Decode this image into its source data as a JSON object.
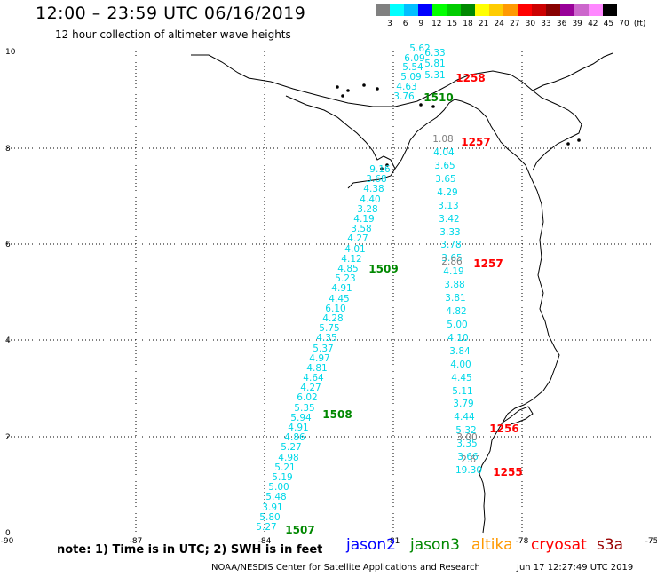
{
  "header": {
    "title": "12:00 – 23:59 UTC 06/16/2019",
    "subtitle": "12 hour collection of altimeter wave heights"
  },
  "scale": {
    "colors": [
      "#808080",
      "#00ffff",
      "#00bfff",
      "#0000ff",
      "#00ff00",
      "#00cc00",
      "#008800",
      "#ffff00",
      "#ffcc00",
      "#ff9900",
      "#ff0000",
      "#cc0000",
      "#880000",
      "#990099",
      "#cc66cc",
      "#ff88ff",
      "#000000"
    ],
    "labels": [
      "3",
      "6",
      "9",
      "12",
      "15",
      "18",
      "21",
      "24",
      "27",
      "30",
      "33",
      "36",
      "39",
      "42",
      "45",
      "70",
      "(ft)"
    ]
  },
  "map": {
    "lon_ticks": [
      "-90",
      "-87",
      "-84",
      "-81",
      "-78",
      "-75"
    ],
    "lat_ticks": [
      "0",
      "2",
      "4",
      "6",
      "8",
      "10"
    ],
    "tracks": [
      {
        "color": "#00d8e8",
        "readings": [
          "5.62",
          "6.33",
          "6.09",
          "5.81",
          "5.54",
          "5.09",
          "5.31",
          "4.63",
          "3.76"
        ]
      },
      {
        "color": "#00d8e8",
        "readings": [
          "9.16",
          "3.68",
          "4.38",
          "4.40",
          "3.28",
          "4.19",
          "3.58",
          "4.27",
          "4.01",
          "4.12",
          "4.85",
          "5.23",
          "4.91",
          "4.45",
          "6.10",
          "4.28",
          "5.75",
          "4.35",
          "5.37",
          "4.97",
          "4.81",
          "4.64",
          "4.27",
          "6.02",
          "5.35",
          "5.94",
          "4.91",
          "4.86",
          "5.27",
          "4.98",
          "5.21",
          "5.19",
          "5.00",
          "5.48",
          "3.91",
          "5.80",
          "5.27"
        ]
      },
      {
        "color": "#00d8e8",
        "readings": [
          "4.04",
          "3.65",
          "3.65",
          "4.29",
          "3.13",
          "3.42",
          "3.33",
          "3.78",
          "3.65",
          "4.19",
          "3.88",
          "3.81",
          "4.82",
          "5.00",
          "4.10",
          "3.84",
          "4.00",
          "4.45",
          "5.11",
          "3.79",
          "4.44",
          "5.32",
          "3.35",
          "3.66",
          "19.30"
        ]
      },
      {
        "color": "#808080",
        "readings": [
          "1.08",
          "2.86",
          "3.00",
          "2.61"
        ]
      }
    ],
    "time_labels": [
      {
        "text": "1258",
        "color": "#ff0000"
      },
      {
        "text": "1510",
        "color": "#008800"
      },
      {
        "text": "1257",
        "color": "#ff0000"
      },
      {
        "text": "1509",
        "color": "#008800"
      },
      {
        "text": "1257",
        "color": "#ff0000"
      },
      {
        "text": "1508",
        "color": "#008800"
      },
      {
        "text": "1256",
        "color": "#ff0000"
      },
      {
        "text": "1255",
        "color": "#ff0000"
      },
      {
        "text": "1507",
        "color": "#008800"
      }
    ]
  },
  "note": "note:  1) Time is in UTC;  2) SWH is in feet",
  "legend": [
    {
      "name": "jason2",
      "color": "#0000ff"
    },
    {
      "name": "jason3",
      "color": "#008800"
    },
    {
      "name": "altika",
      "color": "#ff9900"
    },
    {
      "name": "cryosat",
      "color": "#ff0000"
    },
    {
      "name": "s3a",
      "color": "#990000"
    }
  ],
  "footer": {
    "left": "NOAA/NESDIS Center for Satellite Applications and Research",
    "right": "Jun 17 12:27:49 UTC 2019"
  }
}
